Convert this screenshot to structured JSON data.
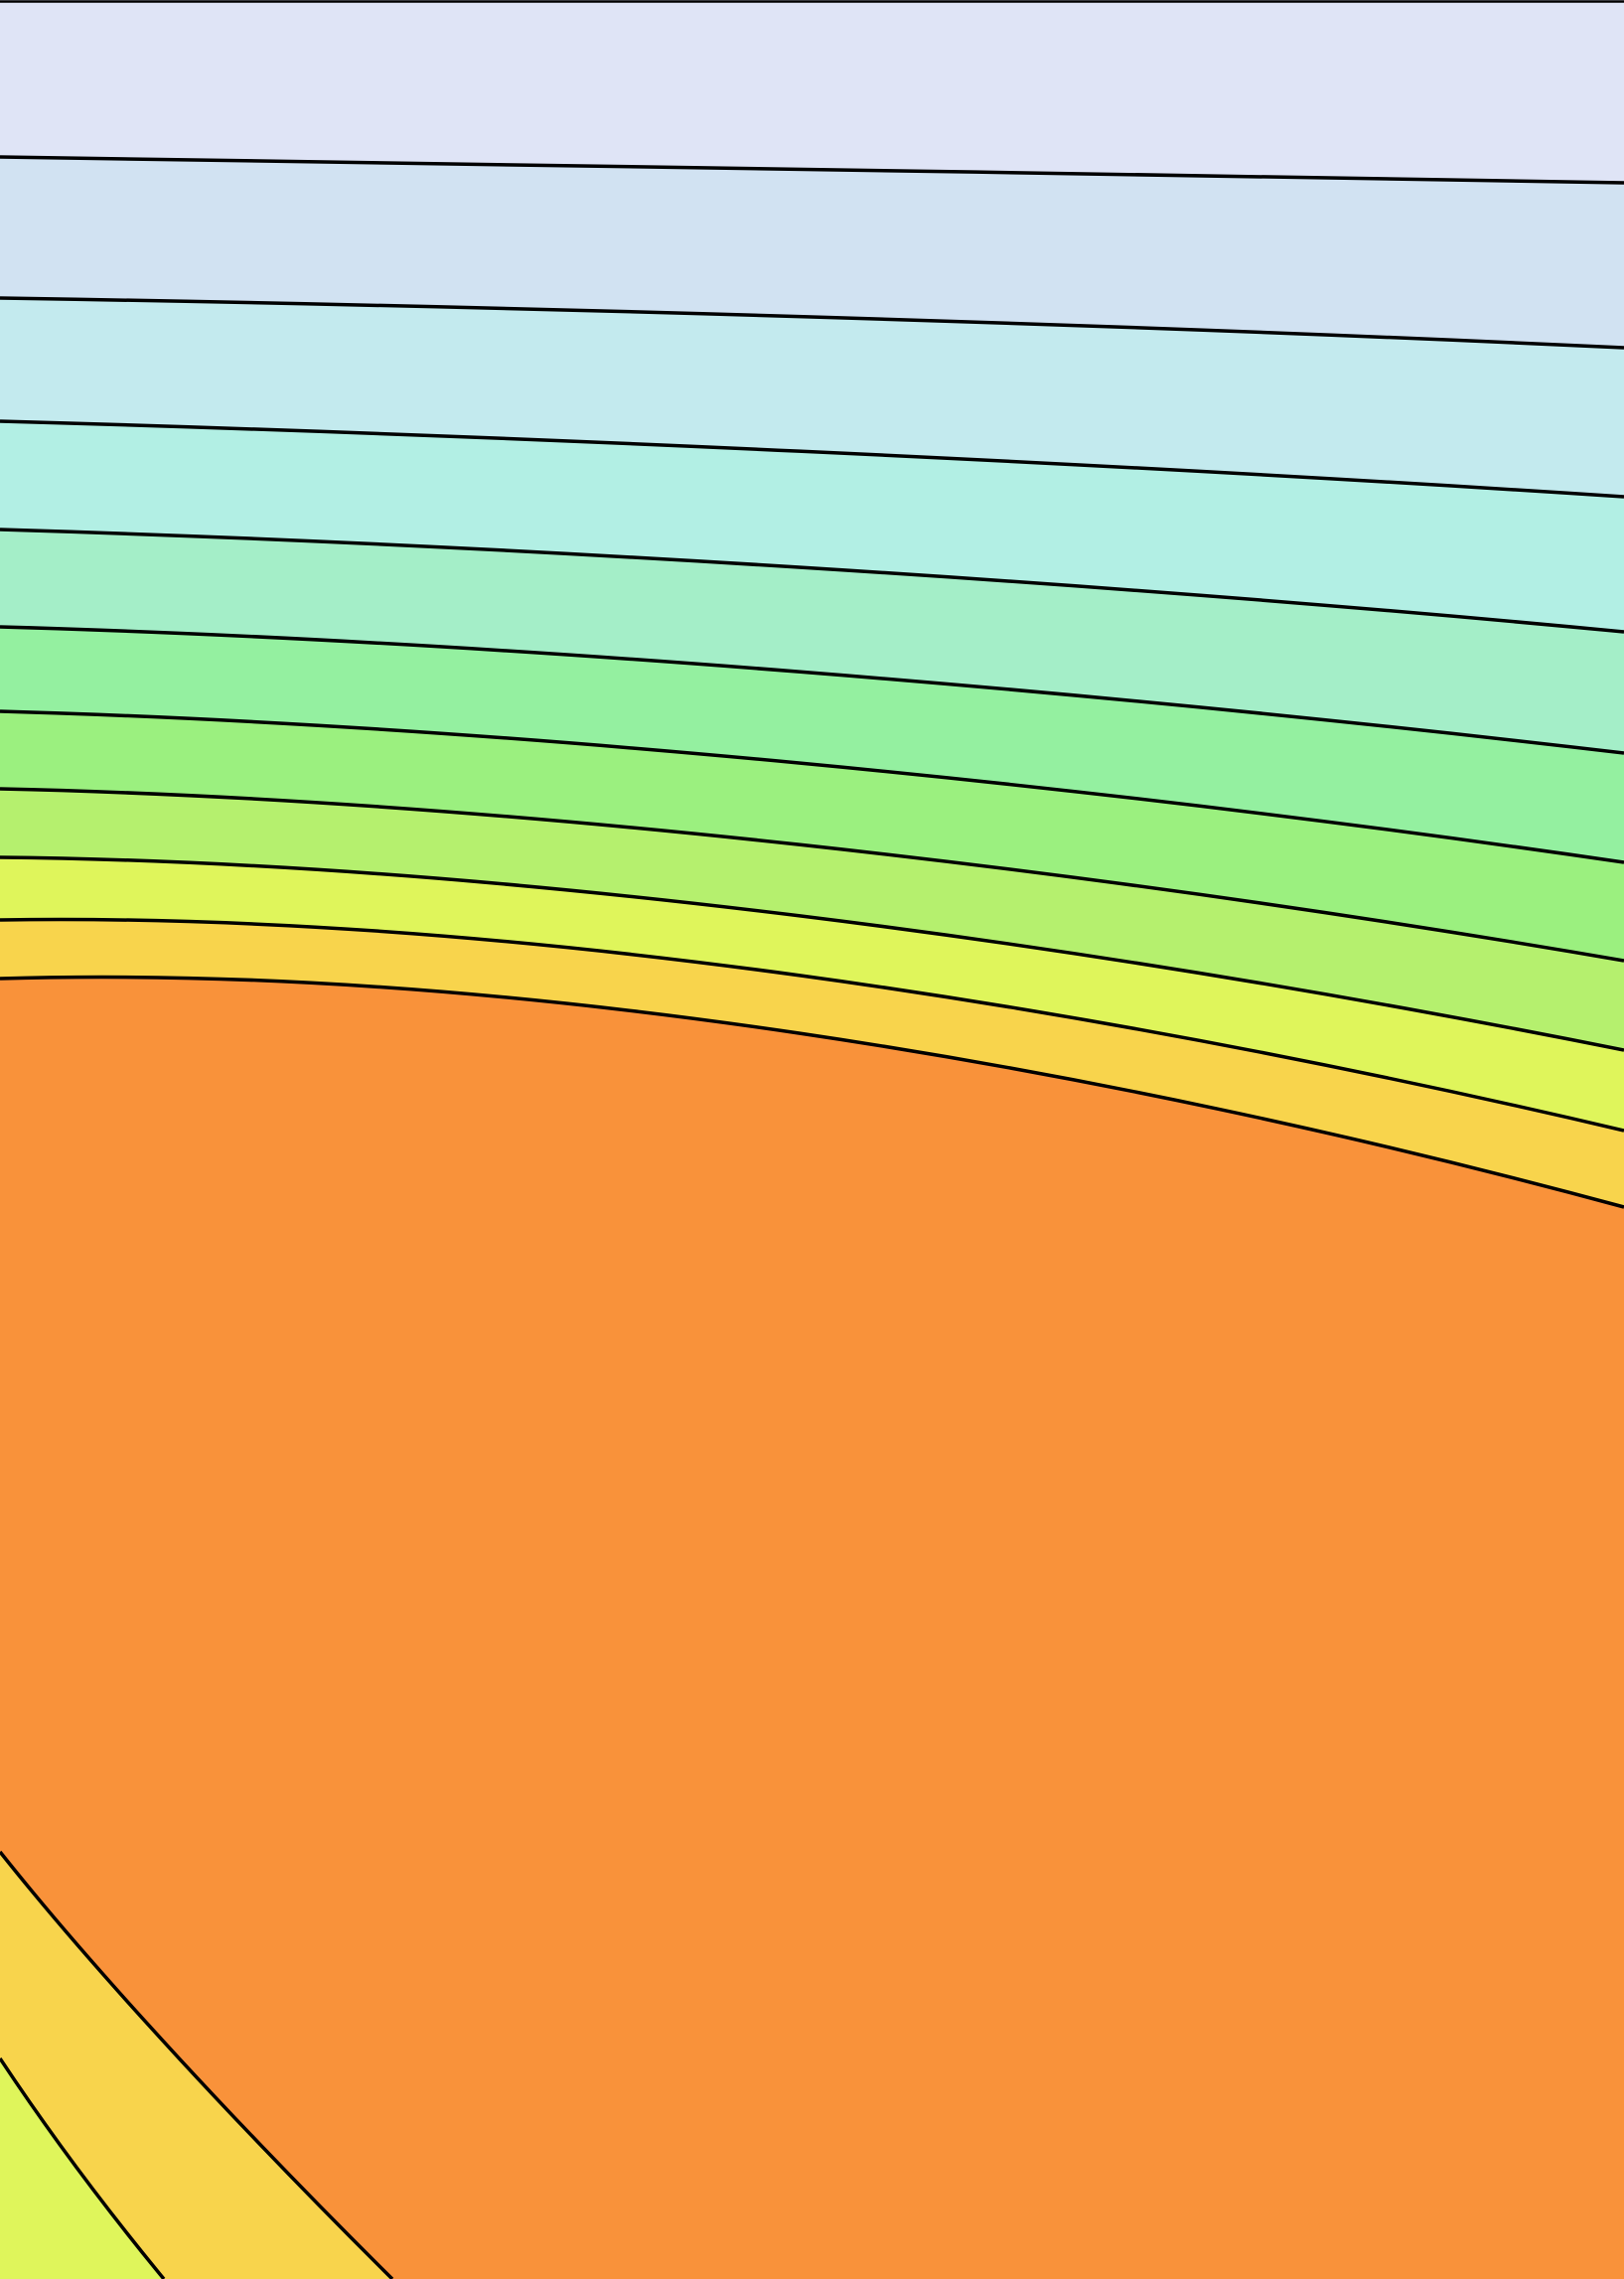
{
  "figure": {
    "kind": "filled contour plot (cropped, no axes or labels visible)",
    "line_color": "#000000",
    "band_colors_top_to_bottom": [
      "#dfe4f6",
      "#d1e2f2",
      "#c3eaee",
      "#b2efe4",
      "#a4eec8",
      "#94f0a0",
      "#9bf07f",
      "#b5f06e",
      "#dff55b",
      "#f8d44c",
      "#f9923a"
    ],
    "lower_left_band_colors_inner_to_outer": [
      "#f8d44c",
      "#dff55b"
    ]
  }
}
